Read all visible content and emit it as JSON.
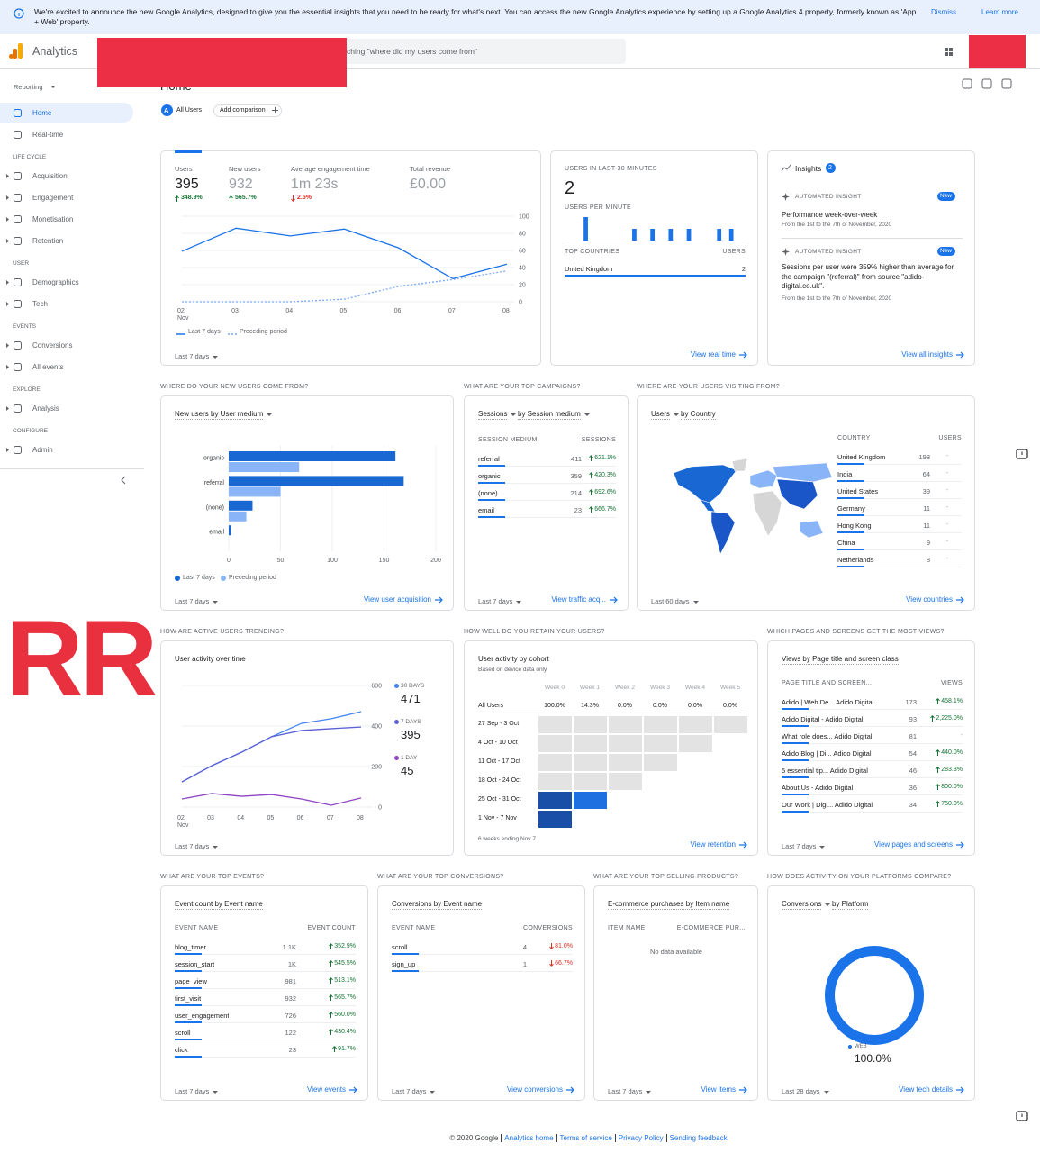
{
  "banner": {
    "text": "We're excited to announce the new Google Analytics, designed to give you the essential insights that you need to be ready for what's next. You can access the new Google Analytics experience by setting up a Google Analytics 4 property, formerly known as 'App + Web' property.",
    "dismiss": "Dismiss",
    "learn_more": "Learn more"
  },
  "topbar": {
    "product": "Analytics",
    "search": "ching \"where did my users come from\""
  },
  "sidebar": {
    "reporting": "Reporting",
    "groups": [
      {
        "items": [
          "Home",
          "Real-time"
        ]
      },
      {
        "heading": "LIFE CYCLE",
        "items": [
          "Acquisition",
          "Engagement",
          "Monetisation",
          "Retention"
        ]
      },
      {
        "heading": "USER",
        "items": [
          "Demographics",
          "Tech"
        ]
      },
      {
        "heading": "EVENTS",
        "items": [
          "Conversions",
          "All events"
        ]
      },
      {
        "heading": "EXPLORE",
        "items": [
          "Analysis"
        ]
      },
      {
        "heading": "CONFIGURE",
        "items": [
          "Admin"
        ]
      }
    ]
  },
  "header": {
    "title": "Home",
    "segment_badge": "A",
    "segment": "All Users",
    "add_comparison": "Add comparison"
  },
  "overlay_text": "RR",
  "overview": {
    "metrics": [
      {
        "label": "Users",
        "value": "395",
        "change": "348.9%",
        "direction": "up"
      },
      {
        "label": "New users",
        "value": "932",
        "change": "565.7%",
        "direction": "up"
      },
      {
        "label": "Average engagement time",
        "value": "1m 23s",
        "change": "2.5%",
        "direction": "down"
      },
      {
        "label": "Total revenue",
        "value": "£0.00"
      }
    ],
    "chart": {
      "categories": [
        "02",
        "03",
        "04",
        "05",
        "06",
        "07",
        "08"
      ],
      "month": "Nov",
      "series": [
        {
          "name": "Last 7 days",
          "color": "#1a73e8",
          "values": [
            59,
            86,
            77,
            85,
            63,
            27,
            44
          ]
        },
        {
          "name": "Preceding period",
          "color": "#7baaf7",
          "dashed": true,
          "values": [
            0,
            0,
            0,
            3,
            18,
            26,
            36
          ]
        }
      ],
      "ylim": [
        0,
        100
      ],
      "yticks": [
        0,
        20,
        40,
        60,
        80,
        100
      ]
    },
    "range": "Last 7 days"
  },
  "realtime": {
    "title": "USERS IN LAST 30 MINUTES",
    "value": "2",
    "per_minute_title": "USERS PER MINUTE",
    "per_minute": [
      0,
      0,
      0,
      2,
      0,
      0,
      0,
      0,
      0,
      0,
      0,
      1,
      0,
      0,
      1,
      0,
      0,
      1,
      0,
      0,
      1,
      0,
      0,
      0,
      0,
      1,
      0,
      1,
      0,
      0
    ],
    "columns": [
      "TOP COUNTRIES",
      "USERS"
    ],
    "rows": [
      {
        "label": "United Kingdom",
        "value": "2"
      }
    ],
    "link": "View real time"
  },
  "insights": {
    "title": "Insights",
    "count": "2",
    "items": [
      {
        "kind": "AUTOMATED INSIGHT",
        "badge": "New",
        "title": "Performance week-over-week",
        "date": "From the 1st to the 7th of November, 2020"
      },
      {
        "kind": "AUTOMATED INSIGHT",
        "badge": "New",
        "title": "Sessions per user were 359% higher than average for the campaign \"(referral)\" from source \"adido-digital.co.uk\".",
        "date": "From the 1st to the 7th of November, 2020"
      }
    ],
    "link": "View all insights"
  },
  "acquisition": {
    "heading": "WHERE DO YOUR NEW USERS COME FROM?",
    "title": "New users by User medium",
    "categories": [
      "organic",
      "referral",
      "(none)",
      "email"
    ],
    "series": [
      {
        "name": "Last 7 days",
        "color": "#1967d2",
        "values": [
          161,
          169,
          23,
          2
        ]
      },
      {
        "name": "Preceding period",
        "color": "#8ab4f8",
        "values": [
          68,
          50,
          17,
          0
        ]
      }
    ],
    "xlim": [
      0,
      200
    ],
    "xticks": [
      0,
      50,
      100,
      150,
      200
    ],
    "range": "Last 7 days",
    "link": "View user acquisition"
  },
  "campaigns": {
    "heading": "WHAT ARE YOUR TOP CAMPAIGNS?",
    "metric": "Sessions",
    "dimension": "by Session medium",
    "columns": [
      "SESSION MEDIUM",
      "SESSIONS"
    ],
    "rows": [
      {
        "label": "referral",
        "value": "411",
        "change": "621.1%",
        "direction": "up"
      },
      {
        "label": "organic",
        "value": "359",
        "change": "420.3%",
        "direction": "up"
      },
      {
        "label": "(none)",
        "value": "214",
        "change": "692.6%",
        "direction": "up"
      },
      {
        "label": "email",
        "value": "23",
        "change": "666.7%",
        "direction": "up"
      }
    ],
    "range": "Last 7 days",
    "link": "View traffic acq..."
  },
  "countries": {
    "heading": "WHERE ARE YOUR USERS VISITING FROM?",
    "metric": "Users",
    "dimension": "by Country",
    "columns": [
      "COUNTRY",
      "USERS"
    ],
    "rows": [
      {
        "label": "United Kingdom",
        "value": "198",
        "change": "-"
      },
      {
        "label": "India",
        "value": "64",
        "change": "-"
      },
      {
        "label": "United States",
        "value": "39",
        "change": "-"
      },
      {
        "label": "Germany",
        "value": "11",
        "change": "-"
      },
      {
        "label": "Hong Kong",
        "value": "11",
        "change": "-"
      },
      {
        "label": "China",
        "value": "9",
        "change": "-"
      },
      {
        "label": "Netherlands",
        "value": "8",
        "change": "-"
      }
    ],
    "range": "Last 60 days",
    "link": "View countries"
  },
  "active": {
    "heading": "HOW ARE ACTIVE USERS TRENDING?",
    "title": "User activity over time",
    "categories": [
      "02",
      "03",
      "04",
      "05",
      "06",
      "07",
      "08"
    ],
    "month": "Nov",
    "series": [
      {
        "name": "30 DAYS",
        "color": "#4285f4",
        "values": [
          124,
          204,
          271,
          347,
          413,
          436,
          471
        ]
      },
      {
        "name": "7 DAYS",
        "color": "#5b5fd6",
        "values": [
          124,
          204,
          271,
          347,
          378,
          387,
          395
        ]
      },
      {
        "name": "1 DAY",
        "color": "#8e44c4",
        "values": [
          40,
          67,
          53,
          62,
          40,
          9,
          45
        ]
      }
    ],
    "ylim": [
      0,
      600
    ],
    "yticks": [
      0,
      200,
      400,
      600
    ],
    "range": "Last 7 days"
  },
  "retention": {
    "heading": "HOW WELL DO YOU RETAIN YOUR USERS?",
    "title": "User activity by cohort",
    "subtitle": "Based on device data only",
    "weeks": [
      "Week 0",
      "Week 1",
      "Week 2",
      "Week 3",
      "Week 4",
      "Week 5"
    ],
    "all_label": "All Users",
    "all_values": [
      "100.0%",
      "14.3%",
      "0.0%",
      "0.0%",
      "0.0%",
      "0.0%"
    ],
    "cohorts": [
      "27 Sep - 3 Oct",
      "4 Oct - 10 Oct",
      "11 Oct - 17 Oct",
      "18 Oct - 24 Oct",
      "25 Oct - 31 Oct",
      "1 Nov - 7 Nov"
    ],
    "values": [
      [
        0,
        0,
        0,
        0,
        0,
        0
      ],
      [
        0,
        0,
        0,
        0,
        0
      ],
      [
        0,
        0,
        0,
        0
      ],
      [
        0,
        0,
        0
      ],
      [
        100,
        14.3
      ],
      [
        100
      ]
    ],
    "footnote": "6 weeks ending Nov 7",
    "link": "View retention"
  },
  "pages": {
    "heading": "WHICH PAGES AND SCREENS GET THE MOST VIEWS?",
    "title": "Views by Page title and screen class",
    "columns": [
      "PAGE TITLE AND SCREEN...",
      "VIEWS"
    ],
    "rows": [
      {
        "label": "Adido | Web De... Adido Digital",
        "value": "173",
        "change": "458.1%",
        "direction": "up"
      },
      {
        "label": "Adido Digital - Adido Digital",
        "value": "93",
        "change": "2,225.0%",
        "direction": "up"
      },
      {
        "label": "What role does... Adido Digital",
        "value": "81",
        "change": "-"
      },
      {
        "label": "Adido Blog | Di... Adido Digital",
        "value": "54",
        "change": "440.0%",
        "direction": "up"
      },
      {
        "label": "5 essential tip... Adido Digital",
        "value": "46",
        "change": "283.3%",
        "direction": "up"
      },
      {
        "label": "About Us - Adido Digital",
        "value": "36",
        "change": "800.0%",
        "direction": "up"
      },
      {
        "label": "Our Work | Digi... Adido Digital",
        "value": "34",
        "change": "750.0%",
        "direction": "up"
      }
    ],
    "range": "Last 7 days",
    "link": "View pages and screens"
  },
  "events": {
    "heading": "WHAT ARE YOUR TOP EVENTS?",
    "title": "Event count by Event name",
    "columns": [
      "EVENT NAME",
      "EVENT COUNT"
    ],
    "rows": [
      {
        "label": "blog_timer",
        "value": "1.1K",
        "change": "352.9%",
        "direction": "up"
      },
      {
        "label": "session_start",
        "value": "1K",
        "change": "545.5%",
        "direction": "up"
      },
      {
        "label": "page_view",
        "value": "981",
        "change": "513.1%",
        "direction": "up"
      },
      {
        "label": "first_visit",
        "value": "932",
        "change": "565.7%",
        "direction": "up"
      },
      {
        "label": "user_engagement",
        "value": "726",
        "change": "560.0%",
        "direction": "up"
      },
      {
        "label": "scroll",
        "value": "122",
        "change": "430.4%",
        "direction": "up"
      },
      {
        "label": "click",
        "value": "23",
        "change": "91.7%",
        "direction": "up"
      }
    ],
    "range": "Last 7 days",
    "link": "View events"
  },
  "conversions": {
    "heading": "WHAT ARE YOUR TOP CONVERSIONS?",
    "title": "Conversions by Event name",
    "columns": [
      "EVENT NAME",
      "CONVERSIONS"
    ],
    "rows": [
      {
        "label": "scroll",
        "value": "4",
        "change": "81.0%",
        "direction": "down"
      },
      {
        "label": "sign_up",
        "value": "1",
        "change": "66.7%",
        "direction": "down"
      }
    ],
    "range": "Last 7 days",
    "link": "View conversions"
  },
  "products": {
    "heading": "WHAT ARE YOUR TOP SELLING PRODUCTS?",
    "title": "E-commerce purchases by Item name",
    "columns": [
      "ITEM NAME",
      "E-COMMERCE PUR..."
    ],
    "empty": "No data available",
    "range": "Last 7 days",
    "link": "View items"
  },
  "platforms": {
    "heading": "HOW DOES ACTIVITY ON YOUR PLATFORMS COMPARE?",
    "metric": "Conversions",
    "dimension": "by Platform",
    "categories": [
      "WEB"
    ],
    "values": [
      100
    ],
    "value_labels": [
      "100.0%"
    ],
    "colors": [
      "#1a73e8"
    ],
    "range": "Last 28 days",
    "link": "View tech details"
  },
  "footer": {
    "copyright": "© 2020 Google",
    "links": [
      "Analytics home",
      "Terms of service",
      "Privacy Policy",
      "Sending feedback"
    ]
  }
}
